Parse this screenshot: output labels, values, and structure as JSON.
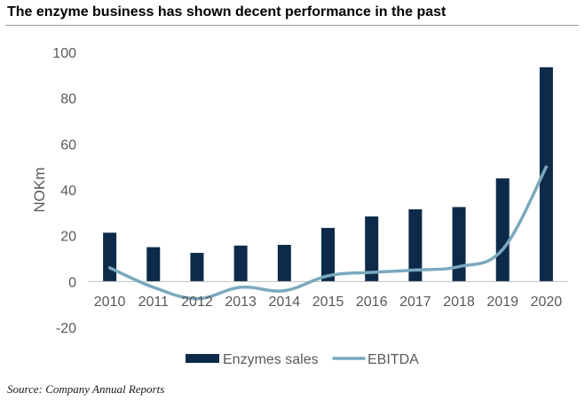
{
  "title": "The enzyme business has shown decent performance in the past",
  "source": "Source: Company Annual Reports",
  "colors": {
    "bars": "#0d2a4a",
    "line": "#7aa9bd",
    "axis_text": "#595959"
  },
  "chart_data": {
    "type": "bar",
    "categories": [
      "2010",
      "2011",
      "2012",
      "2013",
      "2014",
      "2015",
      "2016",
      "2017",
      "2018",
      "2019",
      "2020"
    ],
    "ylabel": "NOKm",
    "xlabel": "",
    "ylim": [
      -20,
      100
    ],
    "yticks": [
      -20,
      0,
      20,
      40,
      60,
      80,
      100
    ],
    "grid": false,
    "legend_position": "bottom",
    "series": [
      {
        "name": "Enzymes sales",
        "type": "bar",
        "values": [
          21.3,
          15.0,
          12.5,
          15.7,
          16.0,
          23.4,
          28.4,
          31.5,
          32.5,
          45.0,
          93.5
        ]
      },
      {
        "name": "EBITDA",
        "type": "line",
        "values": [
          6.0,
          -2.5,
          -7.5,
          -2.5,
          -4.0,
          2.5,
          4.0,
          5.0,
          6.5,
          14.0,
          50.0
        ]
      }
    ]
  }
}
